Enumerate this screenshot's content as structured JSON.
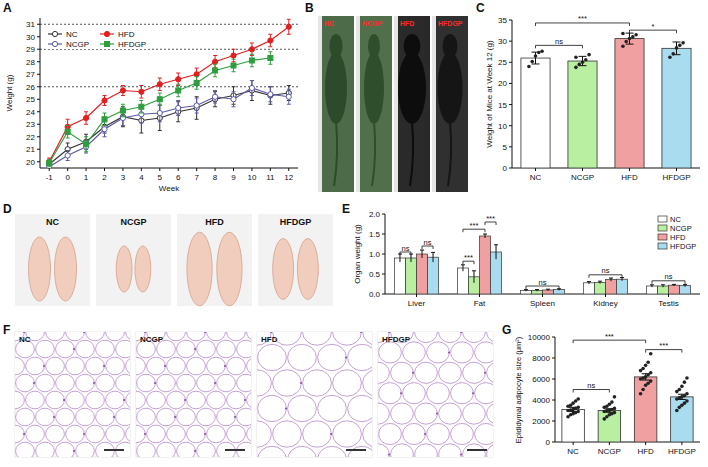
{
  "chart_data": [
    {
      "type": "line",
      "panel": "A",
      "x_label": "Week",
      "y_label": "Weight (g)",
      "x": [
        -1,
        0,
        1,
        2,
        3,
        4,
        5,
        6,
        7,
        8,
        9,
        10,
        11,
        12
      ],
      "xlim": [
        -1.5,
        12.5
      ],
      "xticks": [
        -1,
        0,
        1,
        2,
        3,
        4,
        5,
        6,
        7,
        8,
        9,
        10,
        11,
        12
      ],
      "ylim": [
        19.5,
        31.5
      ],
      "yticks": [
        20,
        21,
        22,
        23,
        24,
        25,
        26,
        27,
        28,
        29,
        30,
        31
      ],
      "reference_lines": [
        26,
        29,
        31
      ],
      "grid": false,
      "legend": "upper left",
      "series": [
        {
          "name": "NC",
          "color": "#333333",
          "marker": "circle-open",
          "line_style": "solid",
          "values": [
            19.8,
            21.0,
            21.6,
            22.8,
            23.6,
            23.3,
            23.5,
            24.0,
            24.3,
            25.0,
            25.3,
            25.7,
            25.3,
            25.5
          ],
          "errors": [
            0.3,
            0.5,
            0.6,
            0.5,
            0.8,
            1.0,
            1.0,
            0.8,
            0.9,
            0.6,
            0.7,
            0.8,
            0.7,
            0.6
          ]
        },
        {
          "name": "NCGP",
          "color": "#5a5aa8",
          "marker": "circle-open",
          "line_style": "solid",
          "values": [
            19.6,
            20.5,
            21.2,
            22.6,
            23.5,
            23.8,
            23.9,
            24.3,
            24.5,
            25.2,
            25.0,
            25.9,
            25.4,
            25.2
          ],
          "errors": [
            0.3,
            0.4,
            0.5,
            0.6,
            0.6,
            0.7,
            0.7,
            0.6,
            0.6,
            0.5,
            0.6,
            0.6,
            0.6,
            0.6
          ]
        },
        {
          "name": "HFD",
          "color": "#e02020",
          "marker": "circle",
          "line_style": "solid",
          "values": [
            20.0,
            22.8,
            23.5,
            24.9,
            25.7,
            25.6,
            26.2,
            26.6,
            27.0,
            28.0,
            28.5,
            29.0,
            29.7,
            30.8
          ],
          "errors": [
            0.3,
            0.6,
            0.5,
            0.4,
            0.4,
            0.5,
            0.5,
            0.5,
            0.5,
            0.5,
            0.5,
            0.5,
            0.5,
            0.6
          ]
        },
        {
          "name": "HFDGP",
          "color": "#2e9e3e",
          "marker": "square",
          "line_style": "solid",
          "values": [
            19.9,
            22.4,
            21.4,
            23.4,
            24.1,
            24.4,
            25.0,
            25.7,
            26.3,
            27.3,
            27.7,
            28.1,
            28.3,
            null
          ],
          "errors": [
            0.3,
            0.5,
            0.6,
            0.5,
            0.5,
            0.5,
            0.5,
            0.5,
            0.5,
            0.5,
            0.5,
            0.5,
            0.5,
            null
          ]
        }
      ]
    },
    {
      "type": "image",
      "panel": "B",
      "labels": [
        "NC",
        "NCGP",
        "HFD",
        "HFDGP"
      ]
    },
    {
      "type": "bar",
      "panel": "C",
      "y_label": "Weight of Mice at Week 12 (g)",
      "categories": [
        "NC",
        "NCGP",
        "HFD",
        "HFDGP"
      ],
      "values": [
        26.0,
        25.3,
        30.6,
        28.3
      ],
      "errors": [
        1.4,
        1.1,
        1.3,
        1.5
      ],
      "colors": [
        "#ffffff",
        "#b8efa0",
        "#f0a0a0",
        "#a8dcee"
      ],
      "points": [
        [
          24.0,
          25.2,
          26.5,
          27.3,
          27.6
        ],
        [
          23.8,
          24.5,
          25.0,
          25.6,
          26.8,
          26.2
        ],
        [
          28.8,
          29.9,
          30.6,
          31.0,
          31.5,
          31.8
        ],
        [
          26.2,
          27.0,
          28.4,
          29.0,
          29.6
        ]
      ],
      "ylim": [
        0,
        35
      ],
      "yticks": [
        0,
        5,
        10,
        15,
        20,
        25,
        30,
        35
      ],
      "grid": false,
      "annotations": [
        {
          "text": "ns",
          "from": 0,
          "to": 1,
          "y": 29.0
        },
        {
          "text": "***",
          "from": 0,
          "to": 2,
          "y": 34.3
        },
        {
          "text": "*",
          "from": 2,
          "to": 3,
          "y": 32.6
        }
      ]
    },
    {
      "type": "image",
      "panel": "D",
      "labels": [
        "NC",
        "NCGP",
        "HFD",
        "HFDGP"
      ]
    },
    {
      "type": "bar",
      "panel": "E",
      "y_label": "Organ weight (g)",
      "categories": [
        "Liver",
        "Fat",
        "Spleen",
        "Kidney",
        "Testis"
      ],
      "series": [
        {
          "name": "NC",
          "color": "#ffffff",
          "values": [
            0.9,
            0.65,
            0.09,
            0.28,
            0.2
          ],
          "errors": [
            0.1,
            0.08,
            0.02,
            0.03,
            0.03
          ]
        },
        {
          "name": "NCGP",
          "color": "#b8efa0",
          "values": [
            0.9,
            0.43,
            0.09,
            0.29,
            0.2
          ],
          "errors": [
            0.1,
            0.15,
            0.02,
            0.03,
            0.03
          ]
        },
        {
          "name": "HFD",
          "color": "#f0a0a0",
          "values": [
            1.0,
            1.45,
            0.1,
            0.36,
            0.22
          ],
          "errors": [
            0.1,
            0.05,
            0.02,
            0.04,
            0.02
          ]
        },
        {
          "name": "HFDGP",
          "color": "#a8dcee",
          "values": [
            0.92,
            1.05,
            0.11,
            0.37,
            0.21
          ],
          "errors": [
            0.12,
            0.18,
            0.02,
            0.04,
            0.03
          ]
        }
      ],
      "ylim": [
        0,
        2
      ],
      "yticks": [
        {
          "value": 0,
          "label": "0.0"
        },
        0.5,
        {
          "value": 1,
          "label": "1.0"
        },
        1.5,
        {
          "value": 2,
          "label": "2.0"
        }
      ],
      "legend": "upper right",
      "grid": false,
      "annotations": [
        {
          "text": "ns",
          "category": 0,
          "from": 0,
          "to": 1,
          "y": 1.05
        },
        {
          "text": "ns",
          "category": 0,
          "from": 2,
          "to": 3,
          "y": 1.2
        },
        {
          "text": "***",
          "category": 1,
          "from": 0,
          "to": 1,
          "y": 0.82
        },
        {
          "text": "***",
          "category": 1,
          "from": 0,
          "to": 2,
          "y": 1.62
        },
        {
          "text": "***",
          "category": 1,
          "from": 2,
          "to": 3,
          "y": 1.8
        },
        {
          "text": "ns",
          "category": 2,
          "from": 0,
          "to": 3,
          "y": 0.2
        },
        {
          "text": "ns",
          "category": 3,
          "from": 0,
          "to": 3,
          "y": 0.48
        },
        {
          "text": "ns",
          "category": 4,
          "from": 0,
          "to": 3,
          "y": 0.33
        }
      ]
    },
    {
      "type": "image",
      "panel": "F",
      "labels": [
        "NC",
        "NCGP",
        "HFD",
        "HFDGP"
      ]
    },
    {
      "type": "bar",
      "panel": "G",
      "y_label": "Epididymal adipocyte size (μm²)",
      "categories": [
        "NC",
        "NCGP",
        "HFD",
        "HFDGP"
      ],
      "values": [
        3100,
        3000,
        6200,
        4300
      ],
      "errors": [
        200,
        170,
        300,
        250
      ],
      "colors": [
        "#ffffff",
        "#b8efa0",
        "#f0a0a0",
        "#a8dcee"
      ],
      "points": [
        [
          2400,
          2600,
          2700,
          2800,
          2900,
          3000,
          3050,
          3100,
          3200,
          3300,
          3400,
          3500,
          3700,
          3900,
          4100
        ],
        [
          2200,
          2400,
          2600,
          2700,
          2800,
          2900,
          3000,
          3000,
          3100,
          3200,
          3300,
          3400,
          3600,
          3800,
          4300
        ],
        [
          4600,
          5000,
          5400,
          5600,
          5800,
          6000,
          6100,
          6200,
          6400,
          6600,
          6800,
          7000,
          7300,
          7600,
          8400
        ],
        [
          3000,
          3300,
          3500,
          3700,
          3900,
          4100,
          4200,
          4300,
          4400,
          4600,
          4800,
          5000,
          5300,
          5700,
          6100
        ]
      ],
      "ylim": [
        0,
        10000
      ],
      "yticks": [
        0,
        2000,
        4000,
        6000,
        8000,
        10000
      ],
      "grid": false,
      "annotations": [
        {
          "text": "ns",
          "from": 0,
          "to": 1,
          "y": 5000
        },
        {
          "text": "***",
          "from": 0,
          "to": 2,
          "y": 9700
        },
        {
          "text": "***",
          "from": 2,
          "to": 3,
          "y": 8800
        }
      ]
    }
  ]
}
